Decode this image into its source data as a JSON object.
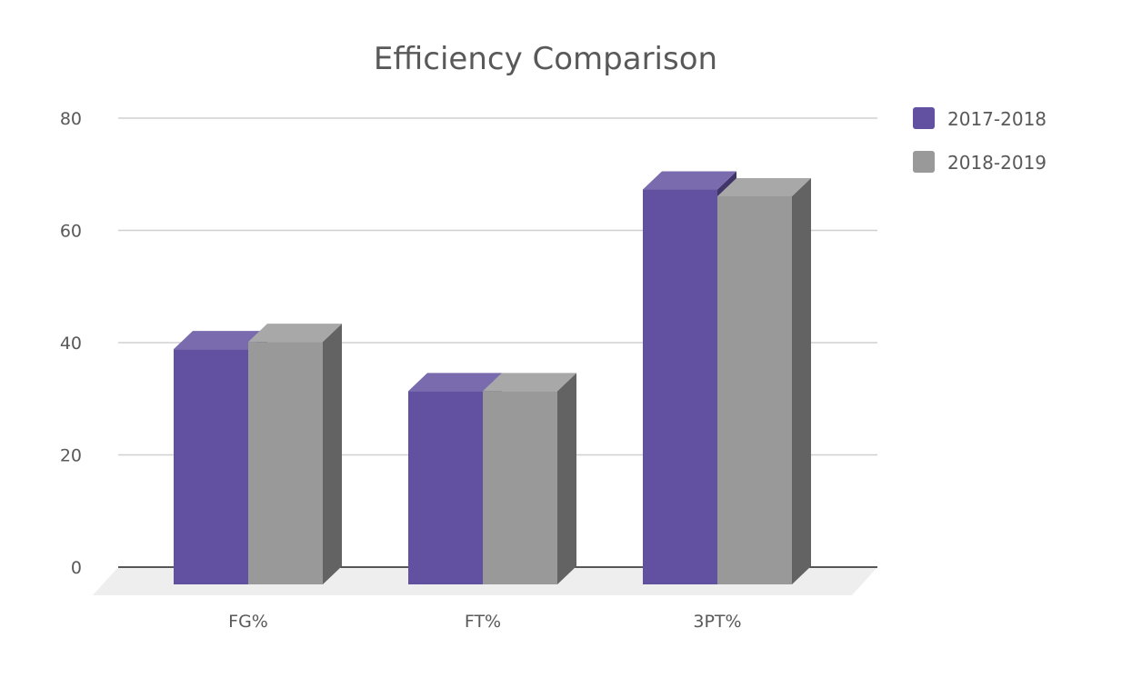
{
  "chart_data": {
    "type": "bar",
    "title": "Efficiency Comparison",
    "xlabel": "",
    "ylabel": "",
    "categories": [
      "FG%",
      "FT%",
      "3PT%"
    ],
    "series": [
      {
        "name": "2017-2018",
        "values": [
          42,
          34.5,
          70.5
        ],
        "color": "#6250a0"
      },
      {
        "name": "2018-2019",
        "values": [
          43.3,
          34.5,
          69.3
        ],
        "color": "#999999"
      }
    ],
    "ylim": [
      0,
      80
    ],
    "yticks": [
      0,
      20,
      40,
      60,
      80
    ],
    "grid": true,
    "legend": "right",
    "three_d": true
  }
}
